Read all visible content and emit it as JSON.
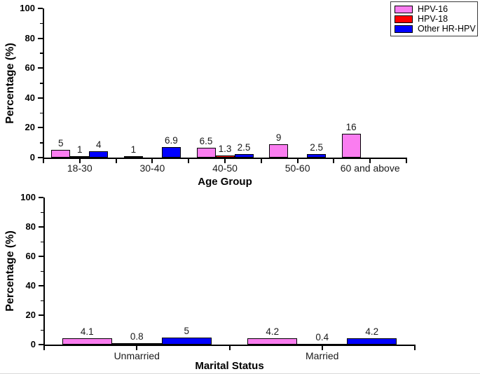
{
  "figure": {
    "background": "#ffffff",
    "axis_color": "#000000",
    "bar_border_color": "#000000"
  },
  "legend": {
    "position": "top-right",
    "items": [
      {
        "label": "HPV-16",
        "color": "#FA7DF0"
      },
      {
        "label": "HPV-18",
        "color": "#FF0000"
      },
      {
        "label": "Other HR-HPV",
        "color": "#0000FF"
      }
    ]
  },
  "chart_data": [
    {
      "type": "bar",
      "title": "",
      "xlabel": "Age Group",
      "ylabel": "Percentage (%)",
      "ylim": [
        0,
        100
      ],
      "yticks": [
        0,
        20,
        40,
        60,
        80,
        100
      ],
      "yticks_minor": [
        10,
        30,
        50,
        70,
        90
      ],
      "grid": false,
      "data_labels": true,
      "legend_position": "top-right",
      "categories": [
        "18-30",
        "30-40",
        "40-50",
        "50-60",
        "60 and above"
      ],
      "series": [
        {
          "name": "HPV-16",
          "color": "#FA7DF0",
          "values": [
            5,
            1,
            6.5,
            9,
            16
          ]
        },
        {
          "name": "HPV-18",
          "color": "#FF0000",
          "values": [
            1,
            null,
            1.3,
            null,
            null
          ]
        },
        {
          "name": "Other HR-HPV",
          "color": "#0000FF",
          "values": [
            4,
            6.9,
            2.5,
            2.5,
            null
          ]
        }
      ]
    },
    {
      "type": "bar",
      "title": "",
      "xlabel": "Marital Status",
      "ylabel": "Percentage (%)",
      "ylim": [
        0,
        100
      ],
      "yticks": [
        0,
        20,
        40,
        60,
        80,
        100
      ],
      "yticks_minor": [
        10,
        30,
        50,
        70,
        90
      ],
      "grid": false,
      "data_labels": true,
      "categories": [
        "Unmarried",
        "Married"
      ],
      "series": [
        {
          "name": "HPV-16",
          "color": "#FA7DF0",
          "values": [
            4.1,
            4.2
          ]
        },
        {
          "name": "HPV-18",
          "color": "#FF0000",
          "values": [
            0.8,
            0.4
          ]
        },
        {
          "name": "Other HR-HPV",
          "color": "#0000FF",
          "values": [
            5,
            4.2
          ]
        }
      ]
    }
  ]
}
